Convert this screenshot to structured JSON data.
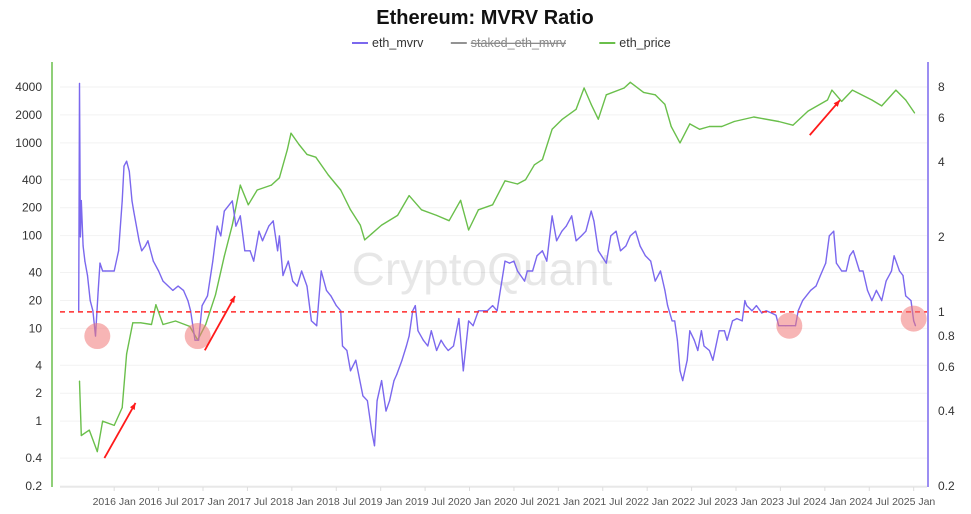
{
  "chart_data": {
    "type": "line",
    "title": "Ethereum: MVRV Ratio",
    "watermark": "CryptoQuant",
    "legend_position": "top-center",
    "legend": [
      {
        "name": "eth_mvrv",
        "color": "#7b68ee",
        "visible": true
      },
      {
        "name": "staked_eth_mvrv",
        "color": "#666666",
        "visible": false
      },
      {
        "name": "eth_price",
        "color": "#6abf4b",
        "visible": true
      }
    ],
    "x_ticks": [
      "2016 Jan",
      "2016 Jul",
      "2017 Jan",
      "2017 Jul",
      "2018 Jan",
      "2018 Jul",
      "2019 Jan",
      "2019 Jul",
      "2020 Jan",
      "2020 Jul",
      "2021 Jan",
      "2021 Jul",
      "2022 Jan",
      "2022 Jul",
      "2023 Jan",
      "2023 Jul",
      "2024 Jan",
      "2024 Jul",
      "2025 Jan"
    ],
    "x_tick_values": [
      2016,
      2016.5,
      2017,
      2017.5,
      2018,
      2018.5,
      2019,
      2019.5,
      2020,
      2020.5,
      2021,
      2021.5,
      2022,
      2022.5,
      2023,
      2023.5,
      2024,
      2024.5,
      2025
    ],
    "xlim": [
      2015.39,
      2025.15
    ],
    "y_left": {
      "scale": "log",
      "ylim": [
        0.2,
        4000
      ],
      "ticks": [
        "0.2",
        "0.4",
        "1",
        "2",
        "4",
        "10",
        "20",
        "40",
        "100",
        "200",
        "400",
        "1000",
        "2000",
        "4000"
      ],
      "tick_values": [
        0.2,
        0.4,
        1,
        2,
        4,
        10,
        20,
        40,
        100,
        200,
        400,
        1000,
        2000,
        4000
      ],
      "color": "#6abf4b"
    },
    "y_right": {
      "scale": "log",
      "ylim": [
        0.2,
        8
      ],
      "ticks": [
        "0.2",
        "0.4",
        "0.6",
        "0.8",
        "1",
        "2",
        "4",
        "6",
        "8"
      ],
      "tick_values": [
        0.2,
        0.4,
        0.6,
        0.8,
        1,
        2,
        4,
        6,
        8
      ],
      "color": "#7b68ee"
    },
    "grid": true,
    "series": [
      {
        "name": "eth_price",
        "axis": "left",
        "color": "#6abf4b",
        "x": [
          2015.61,
          2015.63,
          2015.72,
          2015.81,
          2015.87,
          2016.0,
          2016.09,
          2016.14,
          2016.21,
          2016.3,
          2016.42,
          2016.47,
          2016.55,
          2016.69,
          2016.85,
          2016.94,
          2017.03,
          2017.14,
          2017.24,
          2017.33,
          2017.42,
          2017.51,
          2017.61,
          2017.77,
          2017.86,
          2017.95,
          2017.99,
          2018.08,
          2018.17,
          2018.27,
          2018.41,
          2018.55,
          2018.66,
          2018.77,
          2018.82,
          2018.9,
          2019.01,
          2019.19,
          2019.32,
          2019.46,
          2019.63,
          2019.77,
          2019.9,
          2019.99,
          2020.1,
          2020.26,
          2020.4,
          2020.54,
          2020.63,
          2020.73,
          2020.82,
          2020.93,
          2021.04,
          2021.2,
          2021.29,
          2021.37,
          2021.45,
          2021.54,
          2021.74,
          2021.81,
          2021.96,
          2022.09,
          2022.2,
          2022.27,
          2022.37,
          2022.48,
          2022.59,
          2022.7,
          2022.84,
          2022.98,
          2023.2,
          2023.48,
          2023.64,
          2023.81,
          2024.03,
          2024.08,
          2024.19,
          2024.31,
          2024.53,
          2024.64,
          2024.8,
          2024.91,
          2025.01
        ],
        "y": [
          2.7,
          0.7,
          0.8,
          0.47,
          1.0,
          0.9,
          1.4,
          5.3,
          11.5,
          11.5,
          11,
          18,
          11,
          12,
          10.5,
          7.5,
          11,
          23,
          60,
          130,
          350,
          215,
          310,
          350,
          420,
          850,
          1270,
          960,
          750,
          700,
          450,
          310,
          190,
          130,
          90,
          105,
          130,
          165,
          270,
          190,
          165,
          145,
          240,
          115,
          190,
          215,
          390,
          360,
          400,
          580,
          660,
          1400,
          1780,
          2300,
          3900,
          2600,
          1800,
          3300,
          3900,
          4500,
          3500,
          3300,
          2600,
          1500,
          1000,
          1600,
          1400,
          1500,
          1500,
          1700,
          1900,
          1700,
          1550,
          2200,
          2900,
          3700,
          2800,
          3700,
          2900,
          2500,
          3700,
          2900,
          2100
        ]
      },
      {
        "name": "eth_mvrv",
        "axis": "right",
        "color": "#7b68ee",
        "x": [
          2015.6,
          2015.61,
          2015.62,
          2015.63,
          2015.65,
          2015.67,
          2015.7,
          2015.73,
          2015.76,
          2015.79,
          2015.82,
          2015.84,
          2015.87,
          2015.9,
          2016.0,
          2016.05,
          2016.09,
          2016.11,
          2016.14,
          2016.17,
          2016.2,
          2016.22,
          2016.28,
          2016.31,
          2016.35,
          2016.38,
          2016.44,
          2016.5,
          2016.55,
          2016.66,
          2016.72,
          2016.78,
          2016.83,
          2016.86,
          2016.91,
          2016.95,
          2016.99,
          2017.05,
          2017.11,
          2017.16,
          2017.2,
          2017.24,
          2017.33,
          2017.37,
          2017.42,
          2017.47,
          2017.53,
          2017.57,
          2017.63,
          2017.67,
          2017.74,
          2017.79,
          2017.84,
          2017.86,
          2017.9,
          2017.96,
          2018.01,
          2018.06,
          2018.11,
          2018.17,
          2018.22,
          2018.28,
          2018.33,
          2018.39,
          2018.44,
          2018.5,
          2018.55,
          2018.57,
          2018.62,
          2018.66,
          2018.72,
          2018.8,
          2018.85,
          2018.9,
          2018.93,
          2018.96,
          2019.01,
          2019.06,
          2019.1,
          2019.15,
          2019.18,
          2019.24,
          2019.29,
          2019.32,
          2019.36,
          2019.39,
          2019.42,
          2019.48,
          2019.53,
          2019.57,
          2019.63,
          2019.68,
          2019.72,
          2019.76,
          2019.82,
          2019.88,
          2019.93,
          2019.99,
          2020.04,
          2020.1,
          2020.15,
          2020.2,
          2020.26,
          2020.31,
          2020.4,
          2020.45,
          2020.5,
          2020.54,
          2020.62,
          2020.65,
          2020.71,
          2020.76,
          2020.82,
          2020.87,
          2020.93,
          2020.98,
          2021.04,
          2021.09,
          2021.15,
          2021.2,
          2021.26,
          2021.31,
          2021.37,
          2021.4,
          2021.45,
          2021.54,
          2021.59,
          2021.65,
          2021.7,
          2021.76,
          2021.81,
          2021.87,
          2021.92,
          2021.98,
          2022.04,
          2022.09,
          2022.15,
          2022.2,
          2022.23,
          2022.28,
          2022.31,
          2022.34,
          2022.37,
          2022.4,
          2022.45,
          2022.48,
          2022.53,
          2022.57,
          2022.61,
          2022.64,
          2022.7,
          2022.74,
          2022.81,
          2022.87,
          2022.9,
          2022.96,
          2023.01,
          2023.07,
          2023.1,
          2023.12,
          2023.18,
          2023.23,
          2023.29,
          2023.34,
          2023.4,
          2023.45,
          2023.48,
          2023.56,
          2023.62,
          2023.67,
          2023.7,
          2023.75,
          2023.84,
          2023.9,
          2023.95,
          2024.01,
          2024.05,
          2024.1,
          2024.13,
          2024.19,
          2024.24,
          2024.28,
          2024.32,
          2024.39,
          2024.43,
          2024.48,
          2024.53,
          2024.58,
          2024.64,
          2024.69,
          2024.75,
          2024.78,
          2024.84,
          2024.88,
          2024.91,
          2024.97,
          2025.0,
          2025.02
        ],
        "y": [
          1.01,
          8.26,
          2.0,
          2.8,
          1.84,
          1.6,
          1.4,
          1.11,
          1.01,
          0.8,
          1.22,
          1.57,
          1.46,
          1.46,
          1.46,
          1.76,
          2.79,
          3.85,
          4.03,
          3.67,
          2.79,
          2.54,
          1.93,
          1.76,
          1.84,
          1.93,
          1.6,
          1.46,
          1.33,
          1.22,
          1.27,
          1.22,
          1.11,
          1.01,
          0.77,
          0.77,
          1.06,
          1.16,
          1.6,
          2.21,
          2.02,
          2.54,
          2.79,
          2.21,
          2.43,
          1.76,
          1.76,
          1.6,
          2.11,
          1.93,
          2.21,
          2.32,
          1.76,
          2.02,
          1.4,
          1.6,
          1.33,
          1.27,
          1.46,
          1.27,
          0.92,
          0.88,
          1.46,
          1.22,
          1.16,
          1.06,
          1.01,
          0.73,
          0.7,
          0.58,
          0.64,
          0.46,
          0.44,
          0.33,
          0.29,
          0.44,
          0.53,
          0.4,
          0.44,
          0.53,
          0.56,
          0.64,
          0.73,
          0.8,
          1.01,
          1.06,
          0.84,
          0.77,
          0.73,
          0.84,
          0.7,
          0.77,
          0.73,
          0.7,
          0.73,
          0.94,
          0.58,
          0.92,
          0.88,
          1.01,
          1.01,
          1.01,
          1.06,
          1.01,
          1.6,
          1.57,
          1.6,
          1.46,
          1.33,
          1.46,
          1.46,
          1.68,
          1.76,
          1.6,
          2.43,
          1.93,
          2.11,
          2.21,
          2.43,
          1.93,
          2.02,
          2.11,
          2.54,
          2.32,
          1.76,
          1.57,
          2.02,
          2.11,
          1.76,
          1.84,
          2.02,
          2.11,
          1.84,
          1.68,
          1.6,
          1.33,
          1.46,
          1.22,
          1.06,
          0.92,
          0.92,
          0.77,
          0.58,
          0.53,
          0.64,
          0.84,
          0.77,
          0.7,
          0.84,
          0.73,
          0.7,
          0.64,
          0.84,
          0.84,
          0.77,
          0.92,
          0.94,
          0.92,
          1.11,
          1.06,
          1.01,
          1.06,
          0.99,
          1.01,
          0.99,
          0.97,
          0.88,
          0.88,
          0.88,
          0.88,
          1.01,
          1.11,
          1.22,
          1.27,
          1.4,
          1.57,
          2.02,
          2.11,
          1.57,
          1.46,
          1.46,
          1.68,
          1.76,
          1.46,
          1.46,
          1.22,
          1.11,
          1.22,
          1.11,
          1.33,
          1.46,
          1.68,
          1.46,
          1.4,
          1.16,
          1.11,
          0.92,
          0.88
        ]
      }
    ],
    "annotations": {
      "reference_line": {
        "axis": "right",
        "value": 1,
        "color": "#ff2a2a",
        "style": "dashed"
      },
      "circles": [
        {
          "axis": "right",
          "x": 2015.81,
          "y": 0.8
        },
        {
          "axis": "right",
          "x": 2016.94,
          "y": 0.8
        },
        {
          "axis": "right",
          "x": 2023.6,
          "y": 0.88
        },
        {
          "axis": "right",
          "x": 2025.0,
          "y": 0.94
        }
      ],
      "arrows": [
        {
          "axis": "left",
          "from": [
            2015.89,
            0.4
          ],
          "to": [
            2016.24,
            1.57
          ]
        },
        {
          "axis": "left",
          "from": [
            2017.02,
            5.8
          ],
          "to": [
            2017.36,
            22.3
          ]
        },
        {
          "axis": "left",
          "from": [
            2023.83,
            1212
          ],
          "to": [
            2024.17,
            2885
          ]
        }
      ],
      "circle_color": "#f07878",
      "arrow_color": "#ff1a1a"
    }
  }
}
